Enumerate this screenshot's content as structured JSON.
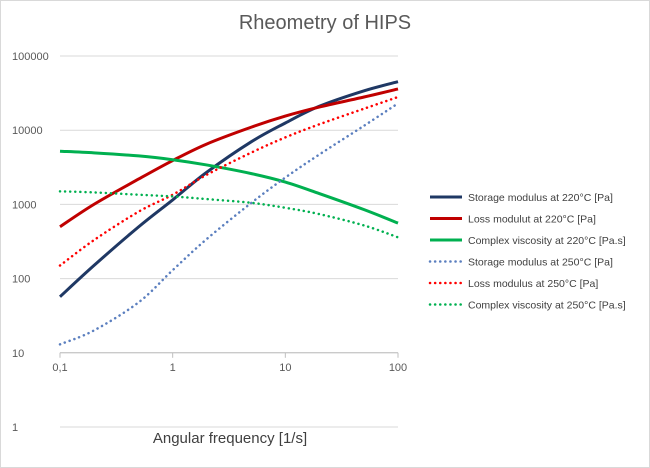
{
  "chart_data": {
    "type": "line",
    "title": "Rheometry of HIPS",
    "xlabel": "Angular frequency [1/s]",
    "ylabel": "",
    "xscale": "log",
    "yscale": "log",
    "xlim": [
      0.1,
      100
    ],
    "ylim": [
      1,
      100000
    ],
    "xticks": [
      "0,1",
      "1",
      "10",
      "100"
    ],
    "yticks": [
      "1",
      "10",
      "100",
      "1000",
      "10000",
      "100000"
    ],
    "grid": "horizontal",
    "legend_position": "right",
    "x": [
      0.1,
      0.2,
      0.5,
      1,
      2,
      5,
      10,
      20,
      50,
      100
    ],
    "series": [
      {
        "name": "Storage modulus at 220°C [Pa]",
        "color": "#1f3864",
        "style": "solid",
        "values": [
          57,
          150,
          500,
          1150,
          2700,
          7000,
          12500,
          21000,
          34000,
          45000
        ]
      },
      {
        "name": "Loss modulut at 220°C [Pa]",
        "color": "#c00000",
        "style": "solid",
        "values": [
          500,
          1000,
          2200,
          3900,
          6500,
          11000,
          15500,
          20500,
          28000,
          36000
        ]
      },
      {
        "name": "Complex viscosity at 220°C [Pa.s]",
        "color": "#00b050",
        "style": "solid",
        "values": [
          5200,
          4950,
          4500,
          4000,
          3400,
          2600,
          2000,
          1400,
          850,
          560
        ]
      },
      {
        "name": "Storage modulus at 250°C [Pa]",
        "color": "#5b7fbf",
        "style": "dotted",
        "values": [
          13,
          20,
          48,
          130,
          340,
          1050,
          2300,
          4700,
          11500,
          23000
        ]
      },
      {
        "name": "Loss modulus at 250°C [Pa]",
        "color": "#ff0000",
        "style": "dotted",
        "values": [
          150,
          330,
          800,
          1350,
          2500,
          5000,
          8000,
          12000,
          19500,
          28000
        ]
      },
      {
        "name": "Complex viscosity at 250°C [Pa.s]",
        "color": "#00b050",
        "style": "dotted",
        "values": [
          1500,
          1450,
          1350,
          1280,
          1180,
          1050,
          900,
          740,
          520,
          360
        ]
      }
    ]
  }
}
